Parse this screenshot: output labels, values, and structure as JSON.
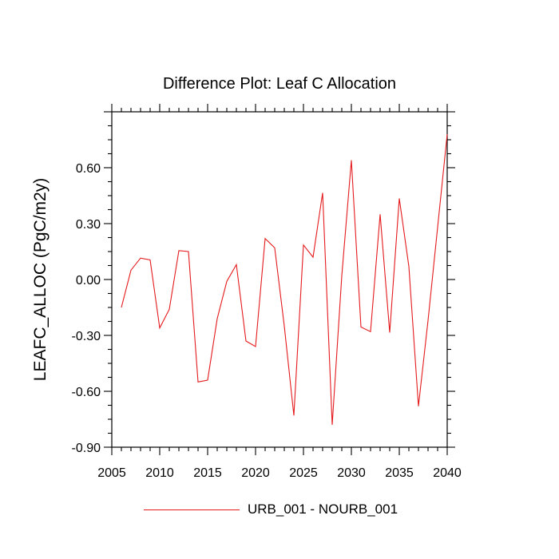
{
  "chart_data": {
    "type": "line",
    "title": "Difference Plot: Leaf C Allocation",
    "xlabel": "",
    "ylabel": "LEAFC_ALLOC  (PgC/m2y)",
    "xlim": [
      2005,
      2040
    ],
    "ylim": [
      -0.9,
      0.9
    ],
    "xticks": [
      2005,
      2010,
      2015,
      2020,
      2025,
      2030,
      2035,
      2040
    ],
    "yticks": [
      -0.9,
      -0.6,
      -0.3,
      0.0,
      0.3,
      0.6
    ],
    "ytick_labels": [
      "-0.90",
      "-0.60",
      "-0.30",
      "0.00",
      "0.30",
      "0.60"
    ],
    "grid": false,
    "legend_position": "bottom",
    "series": [
      {
        "name": "URB_001 - NOURB_001",
        "color": "#e41a1c",
        "x": [
          2006,
          2007,
          2008,
          2009,
          2010,
          2011,
          2012,
          2013,
          2014,
          2015,
          2016,
          2017,
          2018,
          2019,
          2020,
          2021,
          2022,
          2023,
          2024,
          2025,
          2026,
          2027,
          2028,
          2029,
          2030,
          2031,
          2032,
          2033,
          2034,
          2035,
          2036,
          2037,
          2038,
          2039,
          2040
        ],
        "y": [
          -0.15,
          0.05,
          0.115,
          0.105,
          -0.26,
          -0.16,
          0.155,
          0.15,
          -0.55,
          -0.54,
          -0.21,
          -0.01,
          0.08,
          -0.33,
          -0.36,
          0.22,
          0.17,
          -0.25,
          -0.73,
          0.185,
          0.12,
          0.465,
          -0.78,
          0.02,
          0.64,
          -0.255,
          -0.28,
          0.35,
          -0.285,
          0.435,
          0.07,
          -0.68,
          -0.22,
          0.28,
          0.78
        ]
      }
    ]
  }
}
